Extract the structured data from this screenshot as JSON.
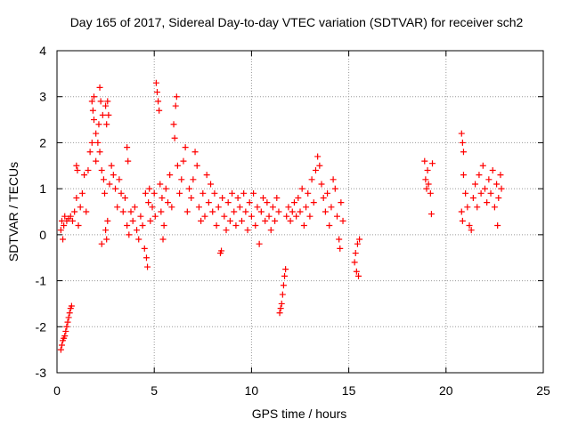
{
  "chart_data": {
    "type": "scatter",
    "title": "Day 165 of 2017, Sidereal Day-to-day VTEC variation (SDTVAR) for receiver sch2",
    "xlabel": "GPS time / hours",
    "ylabel": "SDTVAR / TECUs",
    "xlim": [
      0,
      25
    ],
    "ylim": [
      -3,
      4
    ],
    "x_ticks": [
      "0",
      "5",
      "10",
      "15",
      "20",
      "25"
    ],
    "y_ticks": [
      "-3",
      "-2",
      "-1",
      "0",
      "1",
      "2",
      "3",
      "4"
    ],
    "grid": true,
    "marker": "+",
    "marker_color": "#ff0000",
    "series": [
      {
        "name": "SDTVAR",
        "points": [
          [
            0.2,
            -2.5
          ],
          [
            0.25,
            -2.4
          ],
          [
            0.3,
            -2.3
          ],
          [
            0.35,
            -2.25
          ],
          [
            0.4,
            -2.2
          ],
          [
            0.45,
            -2.1
          ],
          [
            0.5,
            -2.0
          ],
          [
            0.55,
            -1.9
          ],
          [
            0.6,
            -1.8
          ],
          [
            0.65,
            -1.7
          ],
          [
            0.7,
            -1.6
          ],
          [
            0.75,
            -1.55
          ],
          [
            0.2,
            0.1
          ],
          [
            0.25,
            0.3
          ],
          [
            0.3,
            -0.1
          ],
          [
            0.35,
            0.2
          ],
          [
            0.4,
            0.4
          ],
          [
            0.5,
            0.3
          ],
          [
            0.6,
            0.35
          ],
          [
            0.7,
            0.4
          ],
          [
            0.8,
            0.3
          ],
          [
            0.9,
            0.5
          ],
          [
            1.0,
            0.8
          ],
          [
            1.0,
            1.5
          ],
          [
            1.05,
            1.4
          ],
          [
            1.1,
            0.2
          ],
          [
            1.2,
            0.6
          ],
          [
            1.3,
            0.9
          ],
          [
            1.4,
            1.3
          ],
          [
            1.5,
            0.5
          ],
          [
            1.6,
            1.4
          ],
          [
            1.7,
            1.8
          ],
          [
            1.8,
            2.0
          ],
          [
            1.8,
            2.9
          ],
          [
            1.85,
            2.7
          ],
          [
            1.9,
            2.5
          ],
          [
            1.9,
            3.0
          ],
          [
            2.0,
            1.6
          ],
          [
            2.0,
            2.2
          ],
          [
            2.1,
            2.0
          ],
          [
            2.15,
            2.4
          ],
          [
            2.2,
            3.2
          ],
          [
            2.2,
            1.8
          ],
          [
            2.25,
            2.9
          ],
          [
            2.3,
            1.4
          ],
          [
            2.3,
            -0.2
          ],
          [
            2.35,
            2.6
          ],
          [
            2.4,
            1.2
          ],
          [
            2.45,
            0.9
          ],
          [
            2.5,
            2.8
          ],
          [
            2.55,
            2.4
          ],
          [
            2.6,
            2.9
          ],
          [
            2.65,
            2.6
          ],
          [
            2.5,
            0.1
          ],
          [
            2.55,
            -0.1
          ],
          [
            2.6,
            0.3
          ],
          [
            2.7,
            1.1
          ],
          [
            2.8,
            1.5
          ],
          [
            2.9,
            1.3
          ],
          [
            3.0,
            1.0
          ],
          [
            3.1,
            0.6
          ],
          [
            3.2,
            1.2
          ],
          [
            3.3,
            0.9
          ],
          [
            3.4,
            0.5
          ],
          [
            3.5,
            0.8
          ],
          [
            3.6,
            0.2
          ],
          [
            3.6,
            1.9
          ],
          [
            3.65,
            1.6
          ],
          [
            3.7,
            0.0
          ],
          [
            3.8,
            0.5
          ],
          [
            3.9,
            0.3
          ],
          [
            4.0,
            0.6
          ],
          [
            4.1,
            0.1
          ],
          [
            4.2,
            -0.1
          ],
          [
            4.3,
            0.4
          ],
          [
            4.4,
            0.2
          ],
          [
            4.5,
            -0.3
          ],
          [
            4.55,
            0.9
          ],
          [
            4.6,
            -0.5
          ],
          [
            4.65,
            -0.7
          ],
          [
            4.7,
            0.7
          ],
          [
            4.75,
            1.0
          ],
          [
            4.8,
            0.3
          ],
          [
            4.9,
            0.6
          ],
          [
            5.0,
            0.9
          ],
          [
            5.05,
            0.4
          ],
          [
            5.1,
            3.3
          ],
          [
            5.15,
            3.1
          ],
          [
            5.2,
            2.9
          ],
          [
            5.25,
            2.7
          ],
          [
            5.3,
            1.1
          ],
          [
            5.35,
            0.5
          ],
          [
            5.4,
            0.8
          ],
          [
            5.45,
            -0.1
          ],
          [
            5.5,
            0.2
          ],
          [
            5.6,
            1.0
          ],
          [
            5.7,
            0.7
          ],
          [
            5.8,
            1.3
          ],
          [
            5.9,
            0.6
          ],
          [
            6.0,
            2.4
          ],
          [
            6.05,
            2.1
          ],
          [
            6.1,
            2.8
          ],
          [
            6.15,
            3.0
          ],
          [
            6.2,
            1.5
          ],
          [
            6.3,
            0.9
          ],
          [
            6.4,
            1.2
          ],
          [
            6.5,
            1.6
          ],
          [
            6.6,
            1.9
          ],
          [
            6.7,
            0.5
          ],
          [
            6.8,
            1.0
          ],
          [
            6.9,
            0.8
          ],
          [
            7.0,
            1.2
          ],
          [
            7.1,
            1.8
          ],
          [
            7.2,
            1.5
          ],
          [
            7.3,
            0.6
          ],
          [
            7.4,
            0.3
          ],
          [
            7.5,
            0.9
          ],
          [
            7.6,
            0.4
          ],
          [
            7.7,
            1.3
          ],
          [
            7.8,
            0.7
          ],
          [
            7.9,
            1.1
          ],
          [
            8.0,
            0.5
          ],
          [
            8.1,
            0.9
          ],
          [
            8.2,
            0.2
          ],
          [
            8.3,
            0.6
          ],
          [
            8.4,
            -0.4
          ],
          [
            8.45,
            -0.35
          ],
          [
            8.5,
            0.8
          ],
          [
            8.6,
            0.4
          ],
          [
            8.7,
            0.1
          ],
          [
            8.8,
            0.7
          ],
          [
            8.9,
            0.3
          ],
          [
            9.0,
            0.9
          ],
          [
            9.1,
            0.5
          ],
          [
            9.2,
            0.2
          ],
          [
            9.3,
            0.8
          ],
          [
            9.4,
            0.6
          ],
          [
            9.5,
            0.3
          ],
          [
            9.6,
            0.9
          ],
          [
            9.7,
            0.5
          ],
          [
            9.8,
            0.1
          ],
          [
            9.9,
            0.7
          ],
          [
            10.0,
            0.4
          ],
          [
            10.1,
            0.9
          ],
          [
            10.2,
            0.2
          ],
          [
            10.3,
            0.6
          ],
          [
            10.4,
            -0.2
          ],
          [
            10.5,
            0.5
          ],
          [
            10.6,
            0.8
          ],
          [
            10.7,
            0.3
          ],
          [
            10.8,
            0.7
          ],
          [
            10.9,
            0.4
          ],
          [
            11.0,
            0.1
          ],
          [
            11.1,
            0.6
          ],
          [
            11.2,
            0.3
          ],
          [
            11.3,
            0.8
          ],
          [
            11.4,
            0.5
          ],
          [
            11.45,
            -1.7
          ],
          [
            11.5,
            -1.6
          ],
          [
            11.55,
            -1.5
          ],
          [
            11.6,
            -1.3
          ],
          [
            11.65,
            -1.1
          ],
          [
            11.7,
            -0.9
          ],
          [
            11.75,
            -0.75
          ],
          [
            11.8,
            0.4
          ],
          [
            11.9,
            0.6
          ],
          [
            12.0,
            0.3
          ],
          [
            12.1,
            0.5
          ],
          [
            12.2,
            0.7
          ],
          [
            12.3,
            0.4
          ],
          [
            12.4,
            0.8
          ],
          [
            12.5,
            0.5
          ],
          [
            12.6,
            1.0
          ],
          [
            12.7,
            0.2
          ],
          [
            12.8,
            0.6
          ],
          [
            12.9,
            0.9
          ],
          [
            13.0,
            0.4
          ],
          [
            13.1,
            1.2
          ],
          [
            13.2,
            0.7
          ],
          [
            13.3,
            1.4
          ],
          [
            13.4,
            1.7
          ],
          [
            13.5,
            1.5
          ],
          [
            13.6,
            1.1
          ],
          [
            13.7,
            0.8
          ],
          [
            13.8,
            0.5
          ],
          [
            13.9,
            0.9
          ],
          [
            14.0,
            0.2
          ],
          [
            14.1,
            0.6
          ],
          [
            14.2,
            1.2
          ],
          [
            14.3,
            1.0
          ],
          [
            14.4,
            0.4
          ],
          [
            14.5,
            -0.1
          ],
          [
            14.55,
            -0.3
          ],
          [
            14.6,
            0.7
          ],
          [
            14.7,
            0.3
          ],
          [
            15.3,
            -0.6
          ],
          [
            15.35,
            -0.4
          ],
          [
            15.4,
            -0.8
          ],
          [
            15.45,
            -0.2
          ],
          [
            15.5,
            -0.9
          ],
          [
            15.55,
            -0.1
          ],
          [
            18.9,
            1.6
          ],
          [
            18.95,
            1.2
          ],
          [
            19.0,
            1.0
          ],
          [
            19.05,
            1.4
          ],
          [
            19.1,
            1.1
          ],
          [
            19.2,
            0.9
          ],
          [
            19.25,
            0.45
          ],
          [
            19.3,
            1.55
          ],
          [
            20.8,
            2.2
          ],
          [
            20.85,
            2.0
          ],
          [
            20.9,
            1.8
          ],
          [
            20.8,
            0.5
          ],
          [
            20.85,
            0.3
          ],
          [
            20.9,
            1.3
          ],
          [
            21.0,
            0.9
          ],
          [
            21.1,
            0.6
          ],
          [
            21.2,
            0.2
          ],
          [
            21.3,
            0.1
          ],
          [
            21.4,
            0.8
          ],
          [
            21.5,
            1.1
          ],
          [
            21.6,
            0.6
          ],
          [
            21.7,
            1.3
          ],
          [
            21.8,
            0.9
          ],
          [
            21.9,
            1.5
          ],
          [
            22.0,
            1.0
          ],
          [
            22.1,
            0.7
          ],
          [
            22.2,
            1.2
          ],
          [
            22.3,
            0.9
          ],
          [
            22.4,
            1.4
          ],
          [
            22.5,
            0.6
          ],
          [
            22.6,
            1.1
          ],
          [
            22.65,
            0.2
          ],
          [
            22.7,
            0.8
          ],
          [
            22.8,
            1.3
          ],
          [
            22.85,
            1.0
          ]
        ]
      }
    ]
  }
}
